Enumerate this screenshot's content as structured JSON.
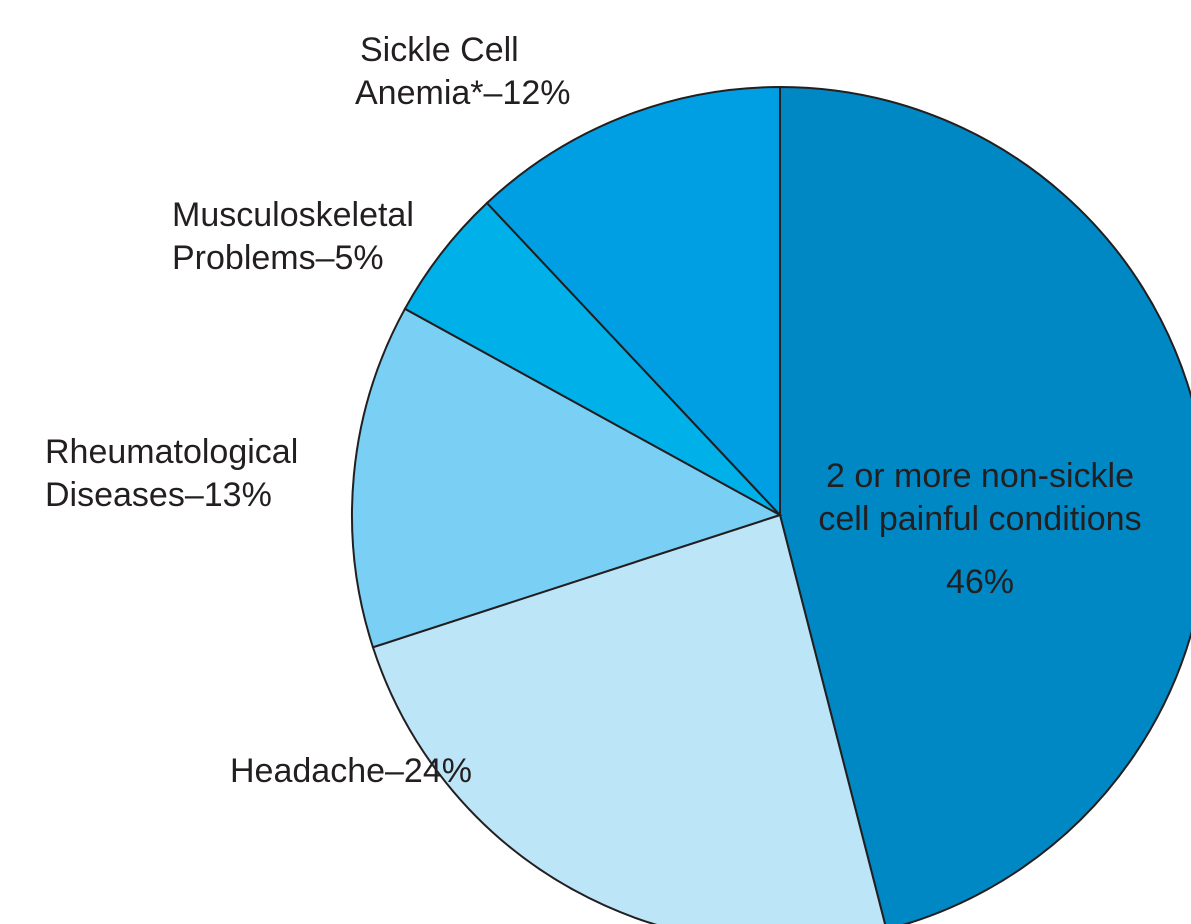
{
  "chart_data": {
    "type": "pie",
    "categories": [
      "2 or more non-sickle cell painful conditions",
      "Headache",
      "Rheumatological Diseases",
      "Musculoskeletal Problems",
      "Sickle Cell Anemia*"
    ],
    "values": [
      46,
      24,
      13,
      5,
      12
    ],
    "value_labels": [
      "46%",
      "–24%",
      "–13%",
      "–5%",
      "–12%"
    ],
    "colors": [
      "#0088c4",
      "#bde5f8",
      "#7acff5",
      "#00b0e8",
      "#009fe3"
    ]
  }
}
